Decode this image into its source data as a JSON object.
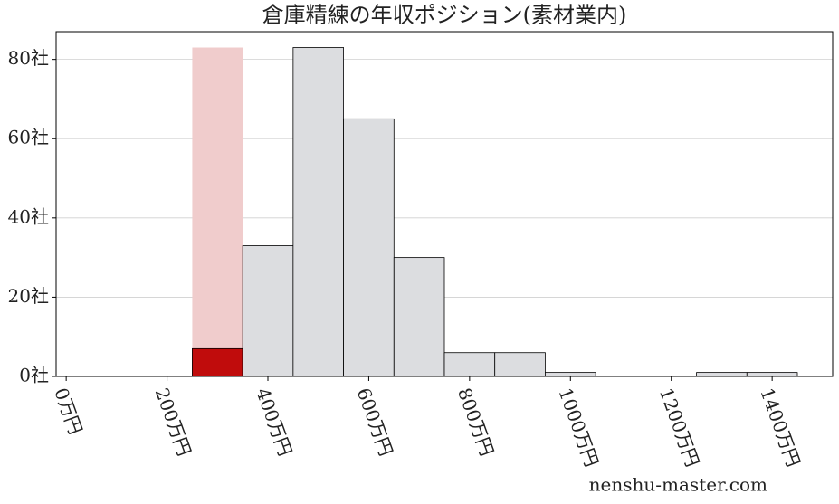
{
  "chart_data": {
    "type": "histogram",
    "title": "倉庫精練の年収ポジション(素材業内)",
    "bins": [
      250,
      350,
      450,
      550,
      650,
      750,
      850,
      950,
      1050,
      1150,
      1250,
      1350,
      1450
    ],
    "values": [
      7,
      33,
      83,
      65,
      30,
      6,
      6,
      1,
      0,
      0,
      1,
      1
    ],
    "colors": [
      "#c00c0c",
      "#dcdde0",
      "#dcdde0",
      "#dcdde0",
      "#dcdde0",
      "#dcdde0",
      "#dcdde0",
      "#dcdde0",
      "#dcdde0",
      "#dcdde0",
      "#dcdde0",
      "#dcdde0"
    ],
    "highlight": {
      "xrange": [
        250,
        350
      ],
      "height": 83,
      "color": "#f0cccc"
    },
    "xlim": [
      -20,
      1520
    ],
    "ylim": [
      0,
      87
    ],
    "xticks": [
      {
        "value": 0,
        "label": "0万円"
      },
      {
        "value": 200,
        "label": "200万円"
      },
      {
        "value": 400,
        "label": "400万円"
      },
      {
        "value": 600,
        "label": "600万円"
      },
      {
        "value": 800,
        "label": "800万円"
      },
      {
        "value": 1000,
        "label": "1000万円"
      },
      {
        "value": 1200,
        "label": "1200万円"
      },
      {
        "value": 1400,
        "label": "1400万円"
      }
    ],
    "yticks": [
      {
        "value": 0,
        "label": "0社"
      },
      {
        "value": 20,
        "label": "20社"
      },
      {
        "value": 40,
        "label": "40社"
      },
      {
        "value": 60,
        "label": "60社"
      },
      {
        "value": 80,
        "label": "80社"
      }
    ],
    "grid": true,
    "watermark": "nenshu-master.com"
  }
}
